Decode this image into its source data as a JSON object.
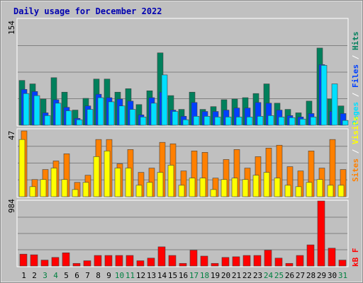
{
  "title": "Daily usage for December 2022",
  "colors": {
    "hits": "#00805c",
    "files": "#0040ff",
    "pages": "#00e0ff",
    "visits": "#ffff00",
    "sites": "#ff8000",
    "kbf": "#ff0000",
    "weekday_label": "#000000",
    "weekend_label": "#008040",
    "sep": "#ffffff"
  },
  "chart_data": [
    {
      "type": "bar",
      "scale_label": "154",
      "right_labels": [
        "Pages",
        "/",
        "Files",
        "/",
        "Hits"
      ],
      "ylim": [
        0,
        154
      ],
      "categories": [
        "1",
        "2",
        "3",
        "4",
        "5",
        "6",
        "7",
        "8",
        "9",
        "10",
        "11",
        "12",
        "13",
        "14",
        "15",
        "16",
        "17",
        "18",
        "19",
        "20",
        "21",
        "22",
        "23",
        "24",
        "25",
        "26",
        "27",
        "28",
        "29",
        "30",
        "31"
      ],
      "series": [
        {
          "name": "Hits",
          "values": [
            65,
            60,
            38,
            69,
            48,
            22,
            39,
            67,
            67,
            48,
            53,
            30,
            50,
            105,
            43,
            23,
            48,
            23,
            27,
            37,
            38,
            40,
            46,
            60,
            32,
            23,
            18,
            35,
            112,
            38,
            28
          ]
        },
        {
          "name": "Files",
          "values": [
            52,
            49,
            18,
            37,
            26,
            10,
            28,
            45,
            40,
            38,
            35,
            15,
            40,
            48,
            22,
            13,
            33,
            20,
            20,
            22,
            25,
            25,
            33,
            32,
            22,
            14,
            12,
            17,
            88,
            20,
            17
          ]
        },
        {
          "name": "Pages",
          "values": [
            46,
            43,
            14,
            32,
            21,
            8,
            23,
            40,
            34,
            28,
            23,
            12,
            32,
            73,
            20,
            8,
            13,
            13,
            12,
            12,
            12,
            12,
            13,
            14,
            12,
            11,
            9,
            12,
            87,
            60,
            7
          ]
        }
      ]
    },
    {
      "type": "bar",
      "scale_label": "47",
      "right_labels": [
        "Sites",
        "/",
        "Visits"
      ],
      "ylim": [
        0,
        47
      ],
      "categories": [
        "1",
        "2",
        "3",
        "4",
        "5",
        "6",
        "7",
        "8",
        "9",
        "10",
        "11",
        "12",
        "13",
        "14",
        "15",
        "16",
        "17",
        "18",
        "19",
        "20",
        "21",
        "22",
        "23",
        "24",
        "25",
        "26",
        "27",
        "28",
        "29",
        "30",
        "31"
      ],
      "series": [
        {
          "name": "Visits",
          "values": [
            40,
            7,
            12,
            20,
            12,
            5,
            10,
            28,
            32,
            20,
            20,
            8,
            10,
            17,
            22,
            8,
            13,
            13,
            5,
            12,
            13,
            12,
            15,
            17,
            13,
            8,
            7,
            10,
            12,
            8,
            8
          ]
        },
        {
          "name": "Sites",
          "values": [
            46,
            12,
            19,
            25,
            30,
            10,
            15,
            40,
            40,
            23,
            33,
            17,
            20,
            38,
            37,
            18,
            32,
            31,
            13,
            26,
            33,
            20,
            28,
            34,
            36,
            21,
            18,
            32,
            20,
            40,
            19
          ]
        }
      ]
    },
    {
      "type": "bar",
      "scale_label": "984",
      "right_labels": [
        "kB F"
      ],
      "ylim": [
        0,
        984
      ],
      "categories": [
        "1",
        "2",
        "3",
        "4",
        "5",
        "6",
        "7",
        "8",
        "9",
        "10",
        "11",
        "12",
        "13",
        "14",
        "15",
        "16",
        "17",
        "18",
        "19",
        "20",
        "21",
        "22",
        "23",
        "24",
        "25",
        "26",
        "27",
        "28",
        "29",
        "30",
        "31"
      ],
      "series": [
        {
          "name": "kB F",
          "values": [
            180,
            170,
            90,
            130,
            200,
            40,
            80,
            160,
            160,
            160,
            160,
            80,
            120,
            290,
            160,
            40,
            240,
            150,
            40,
            130,
            140,
            160,
            160,
            240,
            120,
            40,
            160,
            320,
            984,
            270,
            90
          ]
        }
      ]
    }
  ],
  "x_labels": [
    {
      "text": "1",
      "weekend": false
    },
    {
      "text": "2",
      "weekend": false
    },
    {
      "text": "3",
      "weekend": true
    },
    {
      "text": "4",
      "weekend": true
    },
    {
      "text": "5",
      "weekend": false
    },
    {
      "text": "6",
      "weekend": false
    },
    {
      "text": "7",
      "weekend": false
    },
    {
      "text": "8",
      "weekend": false
    },
    {
      "text": "9",
      "weekend": false
    },
    {
      "text": "10",
      "weekend": true
    },
    {
      "text": "11",
      "weekend": true
    },
    {
      "text": "12",
      "weekend": false
    },
    {
      "text": "13",
      "weekend": false
    },
    {
      "text": "14",
      "weekend": false
    },
    {
      "text": "15",
      "weekend": false
    },
    {
      "text": "16",
      "weekend": false
    },
    {
      "text": "17",
      "weekend": true
    },
    {
      "text": "18",
      "weekend": true
    },
    {
      "text": "19",
      "weekend": false
    },
    {
      "text": "20",
      "weekend": false
    },
    {
      "text": "21",
      "weekend": false
    },
    {
      "text": "22",
      "weekend": false
    },
    {
      "text": "23",
      "weekend": false
    },
    {
      "text": "24",
      "weekend": true
    },
    {
      "text": "25",
      "weekend": true
    },
    {
      "text": "26",
      "weekend": false
    },
    {
      "text": "27",
      "weekend": false
    },
    {
      "text": "28",
      "weekend": false
    },
    {
      "text": "29",
      "weekend": false
    },
    {
      "text": "30",
      "weekend": false
    },
    {
      "text": "31",
      "weekend": true
    }
  ]
}
